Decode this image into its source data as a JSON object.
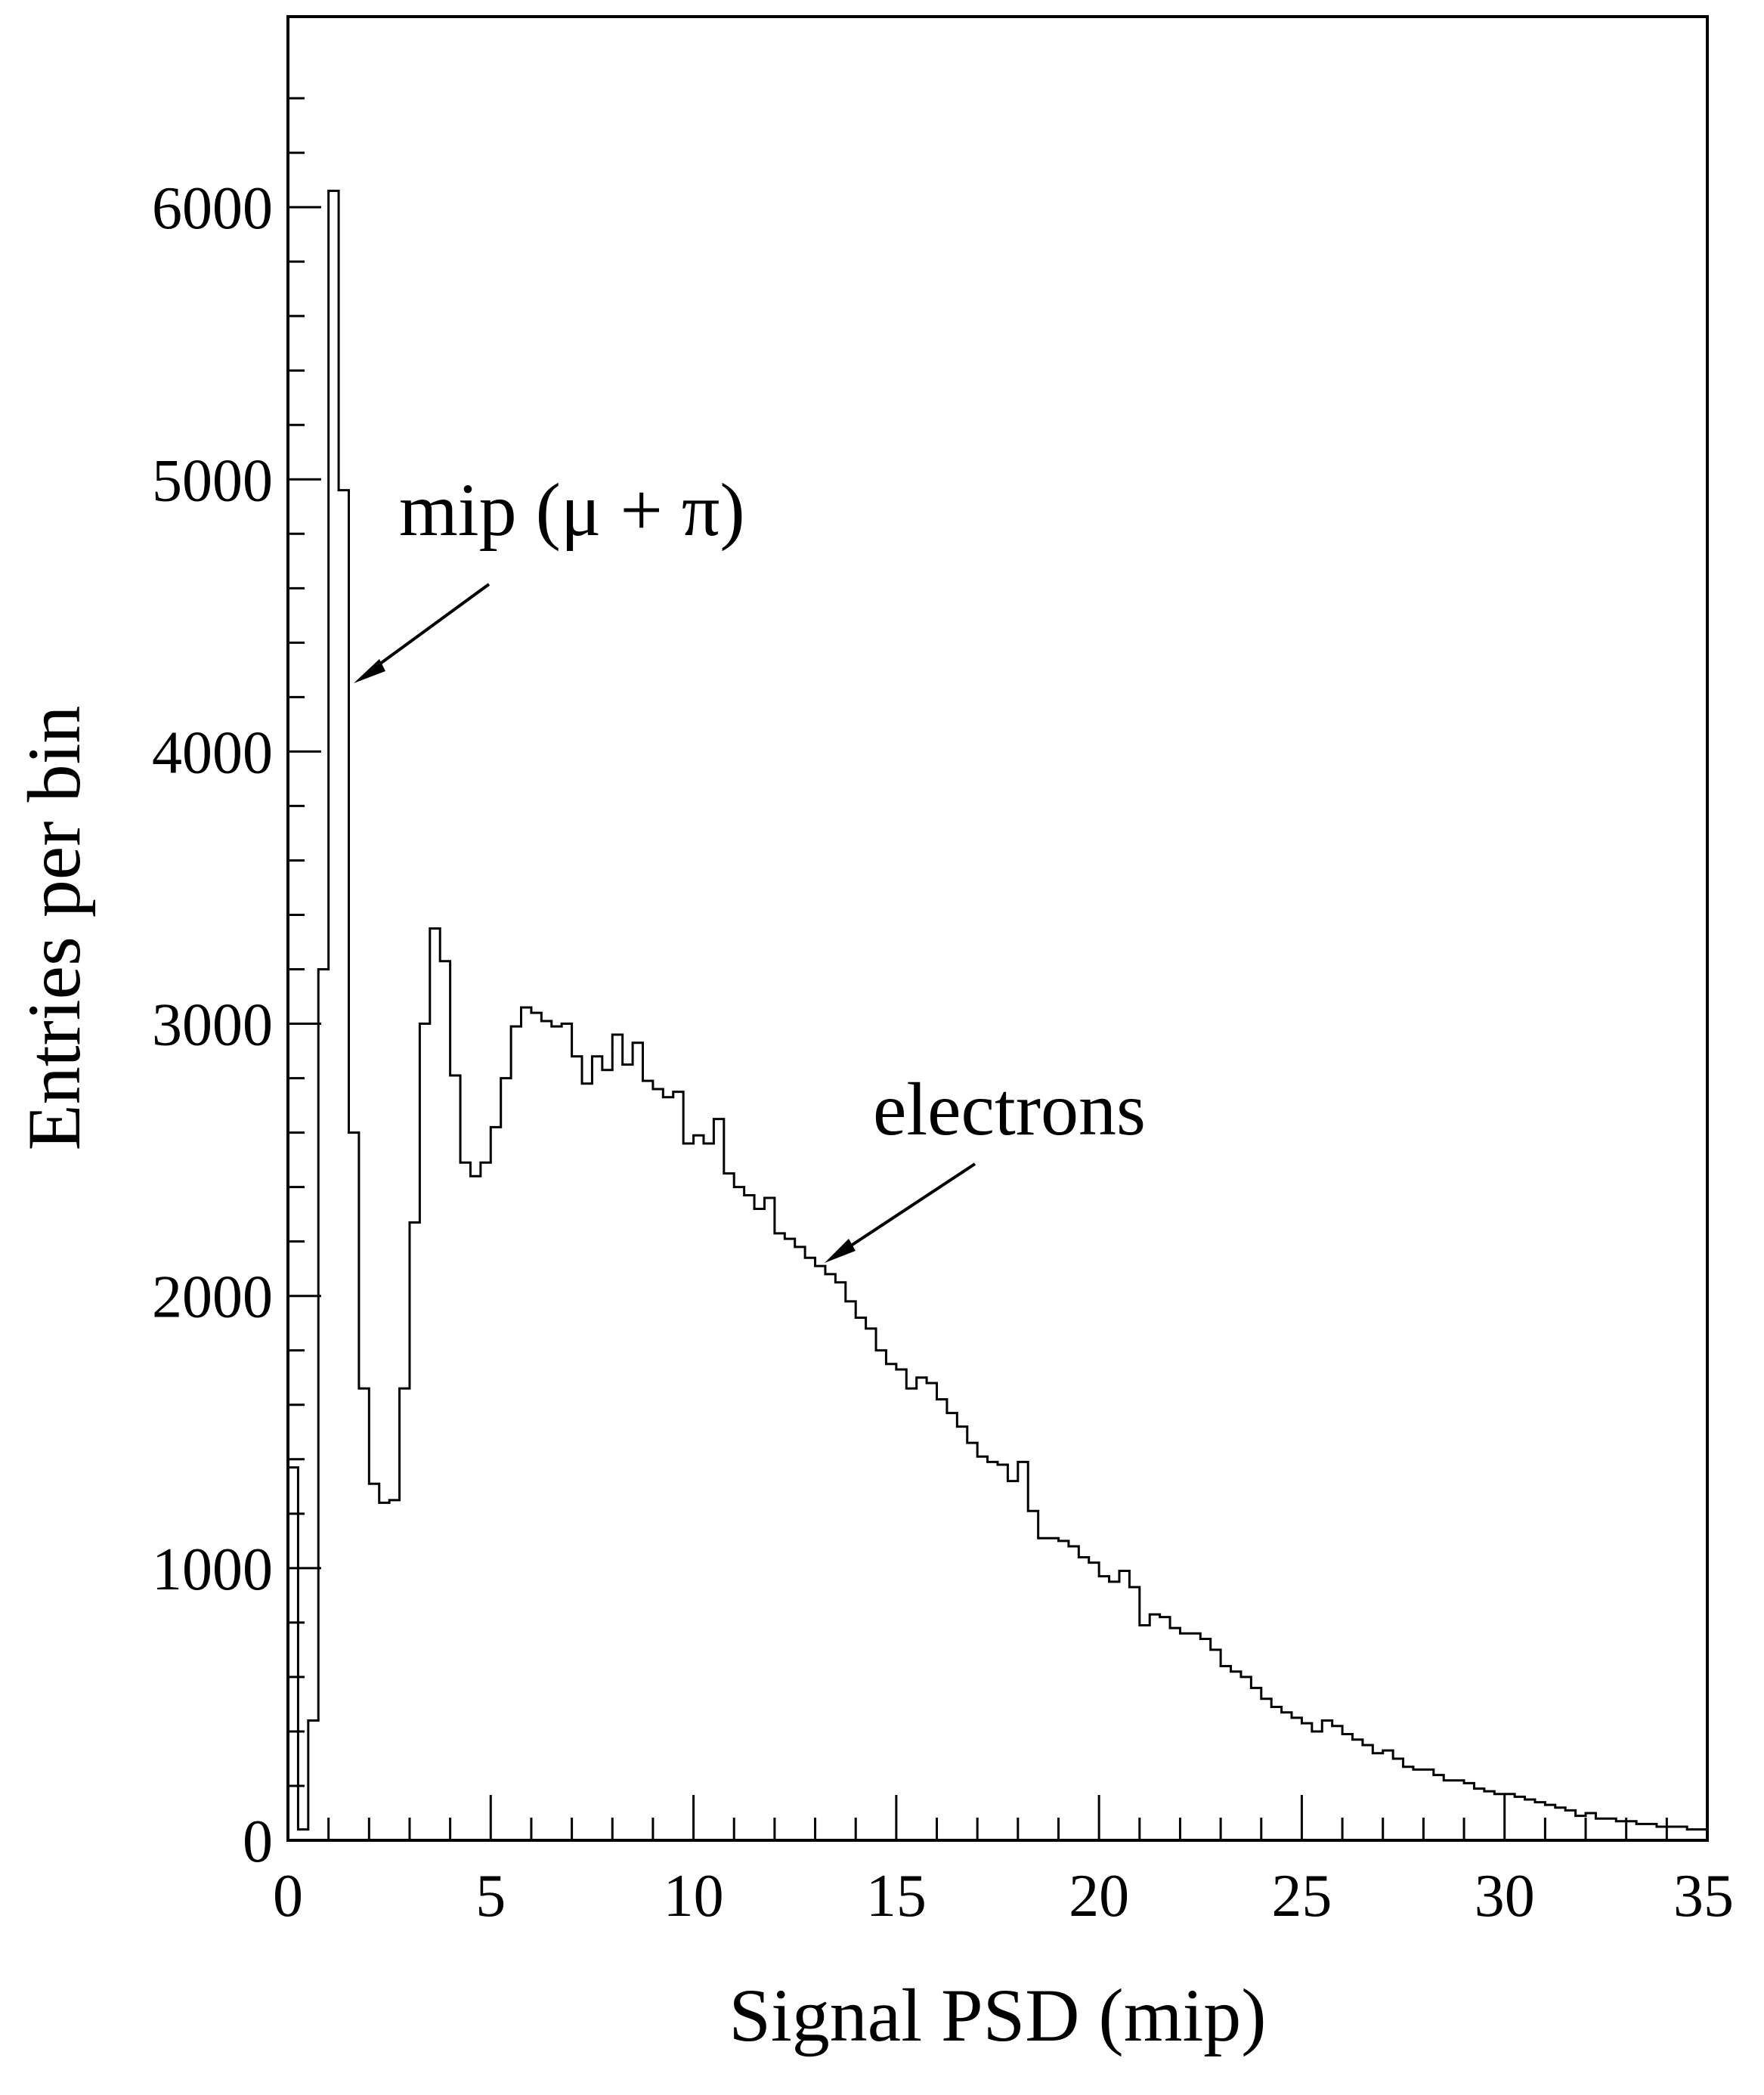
{
  "chart_data": {
    "type": "histogram",
    "xlabel": "Signal PSD (mip)",
    "ylabel": "Entries per bin",
    "xlim": [
      0,
      35
    ],
    "ylim": [
      0,
      6700
    ],
    "x_ticks": [
      0,
      5,
      10,
      15,
      20,
      25,
      30,
      35
    ],
    "y_ticks": [
      0,
      1000,
      2000,
      3000,
      4000,
      5000,
      6000
    ],
    "x_tick_labels": [
      "0",
      "5",
      "10",
      "15",
      "20",
      "25",
      "30",
      "35"
    ],
    "y_tick_labels": [
      "0",
      "1000",
      "2000",
      "3000",
      "4000",
      "5000",
      "6000"
    ],
    "grid": false,
    "bin_width": 0.25,
    "bin_start": 0,
    "values": [
      1370,
      40,
      440,
      3200,
      6060,
      4960,
      2600,
      1660,
      1310,
      1240,
      1250,
      1660,
      2270,
      3000,
      3350,
      3230,
      2810,
      2490,
      2440,
      2490,
      2620,
      2800,
      2990,
      3060,
      3040,
      3010,
      2990,
      3000,
      2880,
      2780,
      2880,
      2830,
      2960,
      2850,
      2930,
      2790,
      2760,
      2730,
      2750,
      2560,
      2590,
      2560,
      2650,
      2450,
      2400,
      2370,
      2320,
      2360,
      2230,
      2210,
      2180,
      2140,
      2110,
      2080,
      2050,
      1980,
      1920,
      1880,
      1800,
      1750,
      1730,
      1660,
      1700,
      1680,
      1620,
      1570,
      1520,
      1460,
      1410,
      1390,
      1380,
      1320,
      1390,
      1210,
      1110,
      1110,
      1100,
      1080,
      1040,
      1020,
      970,
      950,
      990,
      930,
      790,
      830,
      820,
      780,
      760,
      760,
      740,
      700,
      640,
      620,
      600,
      560,
      520,
      490,
      470,
      450,
      430,
      400,
      440,
      420,
      390,
      370,
      350,
      320,
      330,
      300,
      270,
      260,
      260,
      240,
      220,
      220,
      210,
      190,
      180,
      170,
      170,
      160,
      150,
      140,
      130,
      120,
      110,
      90,
      100,
      80,
      80,
      70,
      70,
      60,
      60,
      50,
      50,
      50,
      40,
      40
    ]
  },
  "annotations": {
    "mip_label": "mip (μ + π)",
    "electron_label": "electrons"
  }
}
